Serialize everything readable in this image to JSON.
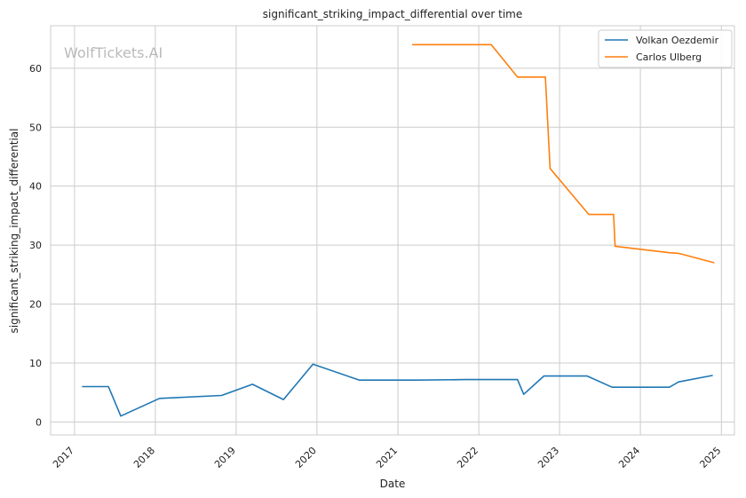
{
  "chart_data": {
    "type": "line",
    "title": "significant_striking_impact_differential over time",
    "xlabel": "Date",
    "ylabel": "significant_striking_impact_differential",
    "watermark": "WolfTickets.AI",
    "x_ticks": [
      "2017",
      "2018",
      "2019",
      "2020",
      "2021",
      "2022",
      "2023",
      "2024",
      "2025"
    ],
    "y_ticks": [
      0,
      10,
      20,
      30,
      40,
      50,
      60
    ],
    "xlim": [
      "2016-09-15",
      "2025-03-01"
    ],
    "ylim": [
      -2.2,
      67.2
    ],
    "grid": true,
    "legend_position": "top-right",
    "series": [
      {
        "name": "Volkan Oezdemir",
        "color": "#1f77b4",
        "points": [
          [
            "2017-02-04",
            6.0
          ],
          [
            "2017-06-03",
            6.0
          ],
          [
            "2017-07-29",
            1.0
          ],
          [
            "2018-01-20",
            4.0
          ],
          [
            "2018-10-27",
            4.5
          ],
          [
            "2019-03-16",
            6.4
          ],
          [
            "2019-08-03",
            3.8
          ],
          [
            "2019-12-14",
            9.8
          ],
          [
            "2020-07-11",
            7.1
          ],
          [
            "2021-03-27",
            7.1
          ],
          [
            "2021-10-30",
            7.2
          ],
          [
            "2022-06-25",
            7.2
          ],
          [
            "2022-07-23",
            4.7
          ],
          [
            "2022-10-22",
            7.8
          ],
          [
            "2023-05-06",
            7.8
          ],
          [
            "2023-08-26",
            5.9
          ],
          [
            "2024-05-11",
            5.9
          ],
          [
            "2024-06-22",
            6.8
          ],
          [
            "2024-11-23",
            7.9
          ]
        ]
      },
      {
        "name": "Carlos Ulberg",
        "color": "#ff7f0e",
        "points": [
          [
            "2021-03-06",
            64.0
          ],
          [
            "2022-02-26",
            64.0
          ],
          [
            "2022-06-25",
            58.5
          ],
          [
            "2022-10-29",
            58.5
          ],
          [
            "2022-11-19",
            43.0
          ],
          [
            "2023-05-13",
            35.2
          ],
          [
            "2023-09-02",
            35.2
          ],
          [
            "2023-09-09",
            29.8
          ],
          [
            "2024-05-11",
            28.7
          ],
          [
            "2024-06-22",
            28.6
          ],
          [
            "2024-11-30",
            27.0
          ]
        ]
      }
    ]
  }
}
